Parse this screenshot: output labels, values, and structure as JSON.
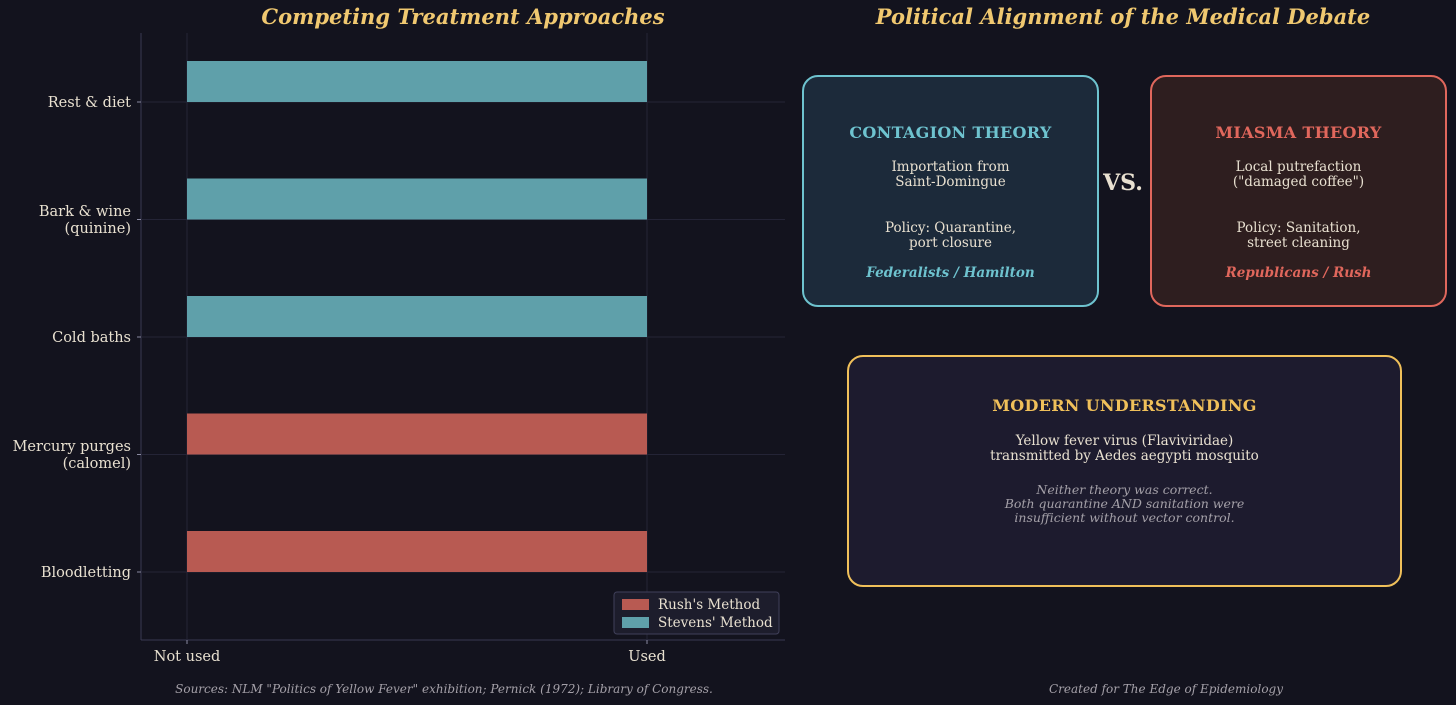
{
  "chart_data": {
    "type": "bar",
    "orientation": "horizontal",
    "title": "Competing Treatment Approaches",
    "categories": [
      "Rest & diet",
      "Bark & wine\n(quinine)",
      "Cold baths",
      "Mercury purges\n(calomel)",
      "Bloodletting"
    ],
    "xlim": [
      -0.1,
      1.3
    ],
    "x_tick_labels": [
      "Not used",
      "Used"
    ],
    "series": [
      {
        "name": "Rush's Method",
        "color": "#b85a52",
        "values": [
          0,
          0,
          0,
          1,
          1
        ]
      },
      {
        "name": "Stevens' Method",
        "color": "#5fa0aa",
        "values": [
          1,
          1,
          1,
          0,
          0
        ]
      }
    ],
    "grid": true,
    "legend": "bottom-right"
  },
  "debate": {
    "title": "Political Alignment of the Medical Debate",
    "vs": "VS.",
    "contagion": {
      "title": "CONTAGION THEORY",
      "cause": "Importation from\nSaint-Domingue",
      "policy": "Policy: Quarantine,\nport closure",
      "party": "Federalists / Hamilton",
      "color": "#6ec3cf"
    },
    "miasma": {
      "title": "MIASMA THEORY",
      "cause": "Local putrefaction\n(\"damaged coffee\")",
      "policy": "Policy: Sanitation,\nstreet cleaning",
      "party": "Republicans / Rush",
      "color": "#e0675c"
    },
    "modern": {
      "title": "MODERN UNDERSTANDING",
      "description": "Yellow fever virus (Flaviviridae)\ntransmitted by Aedes aegypti mosquito",
      "note": "Neither theory was correct.\nBoth quarantine AND sanitation were\ninsufficient without vector control.",
      "color": "#f0c05a"
    }
  },
  "footer": {
    "sources": "Sources: NLM \"Politics of Yellow Fever\" exhibition; Pernick (1972); Library of Congress.",
    "credit": "Created for The Edge of Epidemiology"
  }
}
